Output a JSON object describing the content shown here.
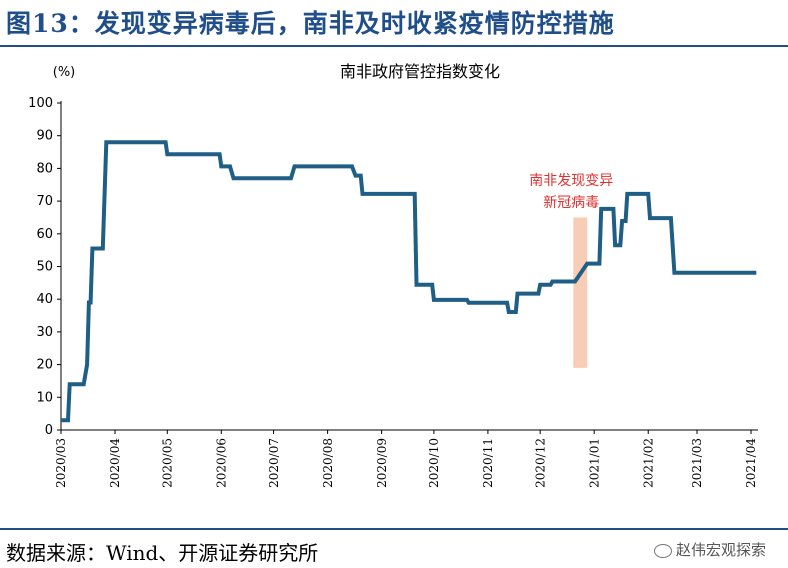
{
  "figure": {
    "title": "图13：发现变异病毒后，南非及时收紧疫情防控措施",
    "source": "数据来源：Wind、开源证券研究所",
    "watermark": "赵伟宏观探索"
  },
  "chart_data": {
    "type": "line",
    "title": "南非政府管控指数变化",
    "ylabel": "(%)",
    "xlabel": "",
    "ylim": [
      0,
      100
    ],
    "yticks": [
      0,
      10,
      20,
      30,
      40,
      50,
      60,
      70,
      80,
      90,
      100
    ],
    "xlim": [
      "2020-03-01",
      "2021-04-05"
    ],
    "xticks": [
      "2020/03",
      "2020/04",
      "2020/05",
      "2020/06",
      "2020/07",
      "2020/08",
      "2020/09",
      "2020/10",
      "2020/11",
      "2020/12",
      "2021/01",
      "2021/02",
      "2021/03",
      "2021/04"
    ],
    "xtick_dates": [
      "2020-03-01",
      "2020-04-01",
      "2020-05-01",
      "2020-06-01",
      "2020-07-01",
      "2020-08-01",
      "2020-09-01",
      "2020-10-01",
      "2020-11-01",
      "2020-12-01",
      "2021-01-01",
      "2021-02-01",
      "2021-03-01",
      "2021-04-01"
    ],
    "grid": false,
    "line_color": "#1f5f86",
    "series": [
      {
        "name": "",
        "points": [
          [
            "2020-03-01",
            3
          ],
          [
            "2020-03-05",
            3
          ],
          [
            "2020-03-06",
            14
          ],
          [
            "2020-03-14",
            14
          ],
          [
            "2020-03-16",
            20
          ],
          [
            "2020-03-17",
            39
          ],
          [
            "2020-03-18",
            39
          ],
          [
            "2020-03-19",
            55.5
          ],
          [
            "2020-03-25",
            55.5
          ],
          [
            "2020-03-27",
            88
          ],
          [
            "2020-04-30",
            88
          ],
          [
            "2020-05-01",
            84.3
          ],
          [
            "2020-05-31",
            84.3
          ],
          [
            "2020-06-01",
            80.6
          ],
          [
            "2020-06-06",
            80.6
          ],
          [
            "2020-06-08",
            77
          ],
          [
            "2020-07-11",
            77
          ],
          [
            "2020-07-13",
            80.6
          ],
          [
            "2020-08-15",
            80.6
          ],
          [
            "2020-08-17",
            77.8
          ],
          [
            "2020-08-20",
            77.8
          ],
          [
            "2020-08-21",
            72.2
          ],
          [
            "2020-09-20",
            72.2
          ],
          [
            "2020-09-21",
            44.4
          ],
          [
            "2020-09-30",
            44.4
          ],
          [
            "2020-10-01",
            39.8
          ],
          [
            "2020-10-20",
            39.8
          ],
          [
            "2020-10-21",
            38.9
          ],
          [
            "2020-11-12",
            38.9
          ],
          [
            "2020-11-13",
            36.1
          ],
          [
            "2020-11-17",
            36.1
          ],
          [
            "2020-11-18",
            41.7
          ],
          [
            "2020-11-30",
            41.7
          ],
          [
            "2020-12-01",
            44.4
          ],
          [
            "2020-12-07",
            44.4
          ],
          [
            "2020-12-08",
            45.4
          ],
          [
            "2020-12-19",
            45.4
          ],
          [
            "2020-12-21",
            45.4
          ],
          [
            "2020-12-28",
            50.9
          ],
          [
            "2021-01-04",
            50.9
          ],
          [
            "2021-01-05",
            67.6
          ],
          [
            "2021-01-12",
            67.6
          ],
          [
            "2021-01-13",
            56.5
          ],
          [
            "2021-01-16",
            56.5
          ],
          [
            "2021-01-17",
            63.9
          ],
          [
            "2021-01-19",
            63.9
          ],
          [
            "2021-01-20",
            72.2
          ],
          [
            "2021-02-01",
            72.2
          ],
          [
            "2021-02-02",
            64.8
          ],
          [
            "2021-02-14",
            64.8
          ],
          [
            "2021-02-16",
            48.1
          ],
          [
            "2021-04-04",
            48.1
          ]
        ]
      }
    ],
    "highlight_band": {
      "x_start": "2020-12-20",
      "x_end": "2020-12-28",
      "y_start": 19,
      "y_end": 65,
      "color": "#f7cdb5"
    },
    "annotation": {
      "lines": [
        "南非发现变异",
        "新冠病毒"
      ],
      "color": "#e03030"
    }
  }
}
